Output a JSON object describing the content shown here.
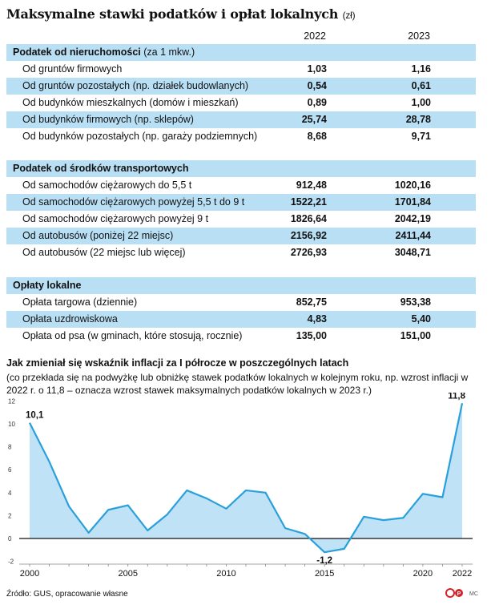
{
  "title": "Maksymalne stawki podatków i opłat lokalnych",
  "unit": "(zł)",
  "years": [
    "2022",
    "2023"
  ],
  "sections": [
    {
      "name": "Podatek od nieruchomości",
      "sub": "(za 1 mkw.)",
      "rows": [
        {
          "label": "Od gruntów firmowych",
          "v2022": "1,03",
          "v2023": "1,16"
        },
        {
          "label": "Od gruntów pozostałych (np. działek budowlanych)",
          "v2022": "0,54",
          "v2023": "0,61"
        },
        {
          "label": "Od budynków mieszkalnych (domów i mieszkań)",
          "v2022": "0,89",
          "v2023": "1,00"
        },
        {
          "label": "Od budynków firmowych (np. sklepów)",
          "v2022": "25,74",
          "v2023": "28,78"
        },
        {
          "label": "Od budynków pozostałych (np. garaży podziemnych)",
          "v2022": "8,68",
          "v2023": "9,71"
        }
      ]
    },
    {
      "name": "Podatek od środków transportowych",
      "sub": "",
      "rows": [
        {
          "label": "Od samochodów ciężarowych do 5,5 t",
          "v2022": "912,48",
          "v2023": "1020,16"
        },
        {
          "label": "Od samochodów ciężarowych powyżej 5,5 t do 9 t",
          "v2022": "1522,21",
          "v2023": "1701,84"
        },
        {
          "label": "Od samochodów ciężarowych powyżej 9 t",
          "v2022": "1826,64",
          "v2023": "2042,19"
        },
        {
          "label": "Od autobusów (poniżej 22 miejsc)",
          "v2022": "2156,92",
          "v2023": "2411,44"
        },
        {
          "label": "Od autobusów (22 miejsc lub więcej)",
          "v2022": "2726,93",
          "v2023": "3048,71"
        }
      ]
    },
    {
      "name": "Opłaty lokalne",
      "sub": "",
      "rows": [
        {
          "label": "Opłata targowa (dziennie)",
          "v2022": "852,75",
          "v2023": "953,38"
        },
        {
          "label": "Opłata uzdrowiskowa",
          "v2022": "4,83",
          "v2023": "5,40"
        },
        {
          "label": "Opłata od psa (w gminach, które stosują, rocznie)",
          "v2022": "135,00",
          "v2023": "151,00"
        }
      ]
    }
  ],
  "chart_data": {
    "type": "area",
    "title": "Jak zmieniał się wskaźnik inflacji za I półrocze w poszczególnych latach",
    "subtitle": "(co przekłada się na podwyżkę lub obniżkę stawek podatków lokalnych w kolejnym roku, np. wzrost inflacji w 2022 r. o 11,8 – oznacza wzrost stawek maksymalnych podatków lokalnych w 2023 r.)",
    "x": [
      2000,
      2001,
      2002,
      2003,
      2004,
      2005,
      2006,
      2007,
      2008,
      2009,
      2010,
      2011,
      2012,
      2013,
      2014,
      2015,
      2016,
      2017,
      2018,
      2019,
      2020,
      2021,
      2022
    ],
    "values": [
      10.1,
      6.7,
      2.8,
      0.5,
      2.5,
      2.9,
      0.7,
      2.1,
      4.2,
      3.5,
      2.6,
      4.2,
      4.0,
      0.9,
      0.4,
      -1.2,
      -0.9,
      1.9,
      1.6,
      1.8,
      3.9,
      3.6,
      11.8
    ],
    "xticks": [
      2000,
      2005,
      2010,
      2015,
      2020,
      2022
    ],
    "yticks": [
      -2,
      0,
      2,
      4,
      6,
      8,
      10,
      12
    ],
    "ylim": [
      -2,
      12.5
    ],
    "annotations": [
      {
        "x": 2000,
        "label": "10,1"
      },
      {
        "x": 2015,
        "label": "-1,2"
      },
      {
        "x": 2022,
        "label": "11,8"
      }
    ],
    "line_color": "#2aa0da",
    "fill_color": "#bfe2f6"
  },
  "source": "Źródło: GUS, opracowanie własne",
  "logo_text": "MC"
}
